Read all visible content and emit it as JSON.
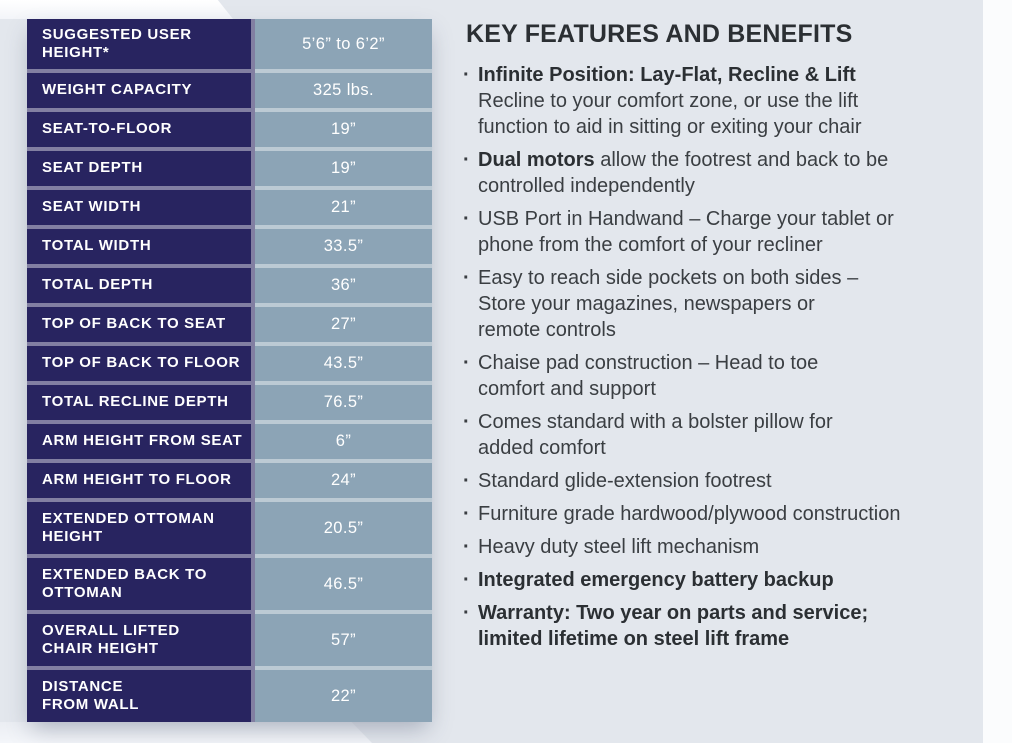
{
  "colors": {
    "navy": "#282460",
    "cell_blue": "#8ca4b6",
    "page_bg": "#e3e7ed",
    "paper_white": "#fbfcfd",
    "heading": "#2b2f33",
    "body_text": "#3a3e42"
  },
  "spec_table": {
    "rows": [
      {
        "label": "SUGGESTED USER\nHEIGHT*",
        "value": "5’6” to 6’2”",
        "tall": true
      },
      {
        "label": "WEIGHT CAPACITY",
        "value": "325 lbs."
      },
      {
        "label": "SEAT-TO-FLOOR",
        "value": "19”"
      },
      {
        "label": "SEAT DEPTH",
        "value": "19”"
      },
      {
        "label": "SEAT WIDTH",
        "value": "21”"
      },
      {
        "label": "TOTAL WIDTH",
        "value": "33.5”"
      },
      {
        "label": "TOTAL DEPTH",
        "value": "36”"
      },
      {
        "label": "TOP OF BACK TO SEAT",
        "value": "27”"
      },
      {
        "label": "TOP OF BACK TO FLOOR",
        "value": "43.5”"
      },
      {
        "label": "TOTAL RECLINE DEPTH",
        "value": "76.5”"
      },
      {
        "label": "ARM HEIGHT FROM SEAT",
        "value": "6”"
      },
      {
        "label": "ARM HEIGHT TO FLOOR",
        "value": "24”"
      },
      {
        "label": "EXTENDED OTTOMAN\nHEIGHT",
        "value": "20.5”",
        "tall": true
      },
      {
        "label": "EXTENDED BACK TO\nOTTOMAN",
        "value": "46.5”",
        "tall": true
      },
      {
        "label": "OVERALL LIFTED\nCHAIR HEIGHT",
        "value": "57”",
        "tall": true
      },
      {
        "label": "DISTANCE\nFROM WALL",
        "value": "22”",
        "tall": true
      }
    ]
  },
  "features": {
    "title": "KEY FEATURES AND BENEFITS",
    "bullet": "·",
    "items": [
      {
        "lines": [
          [
            {
              "t": "Infinite Position: Lay-Flat, Recline & Lift",
              "b": true
            }
          ],
          [
            {
              "t": "Recline to your comfort zone, or use the lift"
            }
          ],
          [
            {
              "t": "function to aid in sitting or exiting your chair"
            }
          ]
        ]
      },
      {
        "lines": [
          [
            {
              "t": "Dual motors",
              "b": true
            },
            {
              "t": " allow the footrest and back to be"
            }
          ],
          [
            {
              "t": "controlled independently"
            }
          ]
        ]
      },
      {
        "lines": [
          [
            {
              "t": "USB Port in Handwand – Charge your tablet or"
            }
          ],
          [
            {
              "t": "phone from the comfort of your recliner"
            }
          ]
        ]
      },
      {
        "lines": [
          [
            {
              "t": "Easy to reach side pockets on both sides –"
            }
          ],
          [
            {
              "t": "Store your magazines, newspapers or"
            }
          ],
          [
            {
              "t": "remote controls"
            }
          ]
        ]
      },
      {
        "lines": [
          [
            {
              "t": "Chaise pad construction – Head to toe"
            }
          ],
          [
            {
              "t": "comfort and support"
            }
          ]
        ]
      },
      {
        "lines": [
          [
            {
              "t": "Comes standard with a bolster pillow for"
            }
          ],
          [
            {
              "t": "added comfort"
            }
          ]
        ]
      },
      {
        "lines": [
          [
            {
              "t": "Standard glide-extension footrest"
            }
          ]
        ]
      },
      {
        "lines": [
          [
            {
              "t": "Furniture grade hardwood/plywood construction"
            }
          ]
        ]
      },
      {
        "lines": [
          [
            {
              "t": "Heavy duty steel lift mechanism"
            }
          ]
        ]
      },
      {
        "lines": [
          [
            {
              "t": "Integrated emergency battery backup",
              "b": true
            }
          ]
        ]
      },
      {
        "lines": [
          [
            {
              "t": "Warranty: Two year on parts and service;",
              "b": true
            }
          ],
          [
            {
              "t": "limited lifetime on steel lift frame",
              "b": true
            }
          ]
        ]
      }
    ]
  }
}
